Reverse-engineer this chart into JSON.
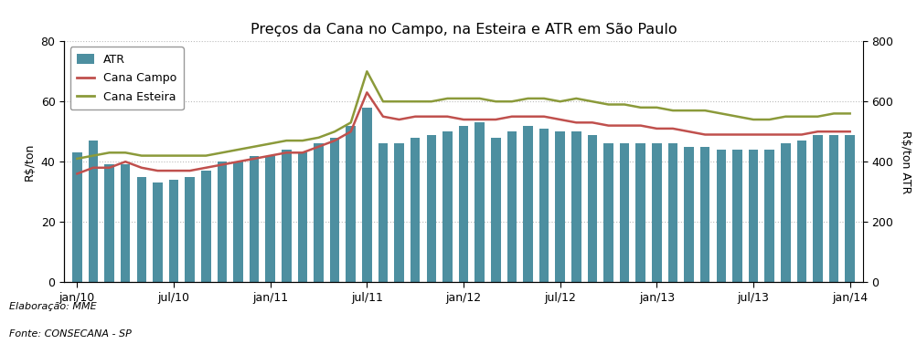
{
  "title": "Preços da Cana no Campo, na Esteira e ATR em São Paulo",
  "ylabel_left": "R$/ton",
  "ylabel_right": "R$/ton ATR",
  "footnote1": "Elaboração: MME",
  "footnote2": "Fonte: CONSECANA - SP",
  "bar_color": "#4d8fa0",
  "line_campo_color": "#c0504d",
  "line_esteira_color": "#8b9a3a",
  "ylim_left": [
    0,
    80
  ],
  "ylim_right": [
    0,
    800
  ],
  "months": 49,
  "tick_positions": [
    0,
    6,
    12,
    18,
    24,
    30,
    36,
    42,
    48
  ],
  "tick_labels": [
    "jan/10",
    "jul/10",
    "jan/11",
    "jul/11",
    "jan/12",
    "jul/12",
    "jan/13",
    "jul/13",
    "jan/14"
  ],
  "atr_values": [
    43,
    47,
    39,
    39,
    35,
    33,
    34,
    35,
    37,
    40,
    40,
    42,
    42,
    44,
    43,
    46,
    48,
    52,
    58,
    46,
    46,
    48,
    49,
    50,
    52,
    53,
    48,
    50,
    52,
    51,
    50,
    50,
    49,
    46,
    46,
    46,
    46,
    46,
    45,
    45,
    44,
    44,
    44,
    44,
    46,
    47,
    49,
    49,
    49
  ],
  "cana_campo_values": [
    36,
    38,
    38,
    40,
    38,
    37,
    37,
    37,
    38,
    39,
    40,
    41,
    42,
    43,
    43,
    45,
    47,
    50,
    63,
    55,
    54,
    55,
    55,
    55,
    54,
    54,
    54,
    55,
    55,
    55,
    54,
    53,
    53,
    52,
    52,
    52,
    51,
    51,
    50,
    49,
    49,
    49,
    49,
    49,
    49,
    49,
    50,
    50,
    50
  ],
  "cana_esteira_values": [
    41,
    42,
    43,
    43,
    42,
    42,
    42,
    42,
    42,
    43,
    44,
    45,
    46,
    47,
    47,
    48,
    50,
    53,
    70,
    60,
    60,
    60,
    60,
    61,
    61,
    61,
    60,
    60,
    61,
    61,
    60,
    61,
    60,
    59,
    59,
    58,
    58,
    57,
    57,
    57,
    56,
    55,
    54,
    54,
    55,
    55,
    55,
    56,
    56
  ]
}
